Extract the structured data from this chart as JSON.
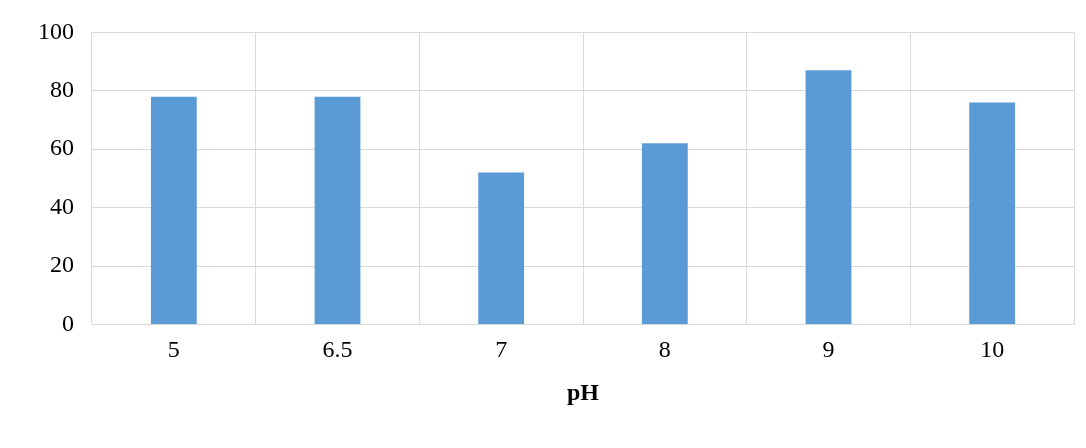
{
  "chart_data": {
    "type": "bar",
    "xlabel": "pH",
    "categories": [
      "5",
      "6.5",
      "7",
      "8",
      "9",
      "10"
    ],
    "values": [
      78,
      78,
      52,
      62,
      87,
      76
    ],
    "color": "#5b9bd5",
    "ylim": [
      0,
      100
    ],
    "yticks": [
      0,
      20,
      40,
      60,
      80,
      100
    ],
    "grid": true,
    "legend": false
  }
}
